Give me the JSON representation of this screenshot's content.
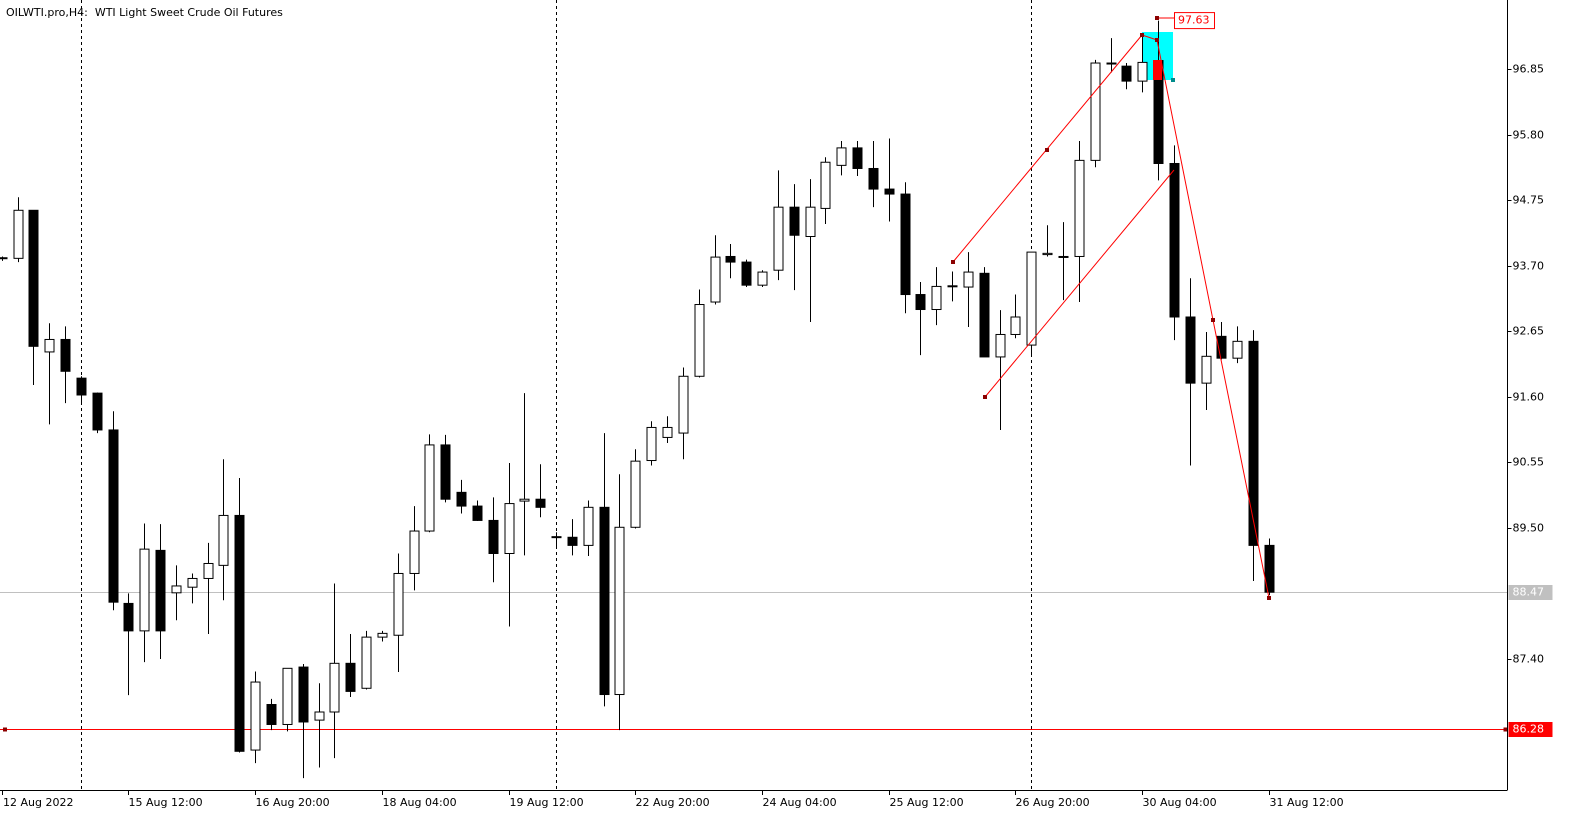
{
  "chart_data": {
    "type": "candlestick",
    "title": "OILWTI.pro,H4:  WTI Light Sweet Crude Oil Futures",
    "categories": [
      "12 Aug 2022",
      null,
      null,
      null,
      null,
      null,
      null,
      null,
      "15 Aug 12:00",
      null,
      null,
      null,
      null,
      null,
      null,
      null,
      "16 Aug 20:00",
      null,
      null,
      null,
      null,
      null,
      null,
      null,
      "18 Aug 04:00",
      null,
      null,
      null,
      null,
      null,
      null,
      null,
      "19 Aug 12:00",
      null,
      null,
      null,
      null,
      null,
      null,
      null,
      "22 Aug 20:00",
      null,
      null,
      null,
      null,
      null,
      null,
      null,
      "24 Aug 04:00",
      null,
      null,
      null,
      null,
      null,
      null,
      null,
      "25 Aug 12:00",
      null,
      null,
      null,
      null,
      null,
      null,
      null,
      "26 Aug 20:00",
      null,
      null,
      null,
      null,
      null,
      null,
      null,
      "30 Aug 04:00",
      null,
      null,
      null,
      null,
      null,
      null,
      null,
      "31 Aug 12:00"
    ],
    "open": [
      93.82,
      93.82,
      94.59,
      92.32,
      92.52,
      91.9,
      91.66,
      91.07,
      88.29,
      87.85,
      89.14,
      88.46,
      88.55,
      88.69,
      88.9,
      89.7,
      85.94,
      86.67,
      86.35,
      87.27,
      86.42,
      86.55,
      87.33,
      86.93,
      87.75,
      87.78,
      88.77,
      89.45,
      90.83,
      90.07,
      89.85,
      89.62,
      89.09,
      89.93,
      89.96,
      89.36,
      89.35,
      89.22,
      89.83,
      86.83,
      89.51,
      90.58,
      90.95,
      91.02,
      91.93,
      93.12,
      93.85,
      93.76,
      93.39,
      93.63,
      94.64,
      94.17,
      94.62,
      95.31,
      95.59,
      95.26,
      94.93,
      94.85,
      93.24,
      93.0,
      93.37,
      93.36,
      93.58,
      92.24,
      92.6,
      92.43,
      93.88,
      93.85,
      93.85,
      95.39,
      96.95,
      96.9,
      96.66,
      96.99,
      95.34,
      92.88,
      91.82,
      92.57,
      92.22,
      92.49,
      89.22
    ],
    "high": [
      93.85,
      94.8,
      94.59,
      92.78,
      92.73,
      91.93,
      91.67,
      91.37,
      88.45,
      89.57,
      89.56,
      88.9,
      88.77,
      89.26,
      90.6,
      90.3,
      87.2,
      86.76,
      87.25,
      87.32,
      87.01,
      88.61,
      87.8,
      87.85,
      87.85,
      89.09,
      89.85,
      91.0,
      90.99,
      90.27,
      89.94,
      89.99,
      90.54,
      91.66,
      90.52,
      89.43,
      89.64,
      89.94,
      91.02,
      90.36,
      90.76,
      91.21,
      91.29,
      92.07,
      93.32,
      94.19,
      94.05,
      93.8,
      93.63,
      95.23,
      95.01,
      95.09,
      95.44,
      95.7,
      95.7,
      95.7,
      95.74,
      95.04,
      93.44,
      93.68,
      93.61,
      93.92,
      93.68,
      92.99,
      93.24,
      93.92,
      94.35,
      94.4,
      95.7,
      97.0,
      97.35,
      96.95,
      97.4,
      97.63,
      95.63,
      93.5,
      92.64,
      92.8,
      92.73,
      92.67,
      89.33
    ],
    "low": [
      93.78,
      93.76,
      91.79,
      91.16,
      91.5,
      91.51,
      91.02,
      88.18,
      86.82,
      87.35,
      87.4,
      88.02,
      88.29,
      87.8,
      88.34,
      85.9,
      85.73,
      86.26,
      86.24,
      85.49,
      85.66,
      85.81,
      86.79,
      86.91,
      87.68,
      87.19,
      88.5,
      89.43,
      89.91,
      89.73,
      89.61,
      88.63,
      87.92,
      89.06,
      89.67,
      89.19,
      89.06,
      89.05,
      86.64,
      86.26,
      89.49,
      90.5,
      90.86,
      90.6,
      91.91,
      93.08,
      93.5,
      93.36,
      93.36,
      93.47,
      93.31,
      92.8,
      94.37,
      95.15,
      95.14,
      94.64,
      94.41,
      92.94,
      92.27,
      92.75,
      93.13,
      92.72,
      92.24,
      91.07,
      92.54,
      92.28,
      93.85,
      93.15,
      93.12,
      95.28,
      96.8,
      96.53,
      96.48,
      95.07,
      92.51,
      90.5,
      91.39,
      92.2,
      92.14,
      88.65,
      88.42
    ],
    "close": [
      93.83,
      94.59,
      92.41,
      92.52,
      92.01,
      91.63,
      91.07,
      88.31,
      87.85,
      89.16,
      87.85,
      88.57,
      88.69,
      88.93,
      89.7,
      85.92,
      87.03,
      86.35,
      87.25,
      86.39,
      86.55,
      87.33,
      86.88,
      87.75,
      87.81,
      88.77,
      89.45,
      90.83,
      89.96,
      89.85,
      89.62,
      89.09,
      89.89,
      89.96,
      89.83,
      89.35,
      89.22,
      89.83,
      86.83,
      89.51,
      90.57,
      91.11,
      91.11,
      91.93,
      93.08,
      93.84,
      93.76,
      93.39,
      93.6,
      94.64,
      94.19,
      94.64,
      95.36,
      95.59,
      95.26,
      94.93,
      94.85,
      93.24,
      93.0,
      93.37,
      93.38,
      93.6,
      92.24,
      92.6,
      92.88,
      93.92,
      93.9,
      93.84,
      95.39,
      96.95,
      96.94,
      96.66,
      96.96,
      95.34,
      92.88,
      91.82,
      92.25,
      92.22,
      92.49,
      89.22,
      88.47
    ],
    "up_color": "#ffffff",
    "down_color": "#000000",
    "ylim": [
      85.3,
      97.96
    ],
    "yticks": [
      96.85,
      {
        "value": 95.8,
        "label": "95.80"
      },
      {
        "value": 94.75,
        "label": "94.75"
      },
      {
        "value": 93.7,
        "label": "93.70"
      },
      92.65,
      {
        "value": 91.6,
        "label": "91.60"
      },
      90.55,
      {
        "value": 89.5,
        "label": "89.50"
      },
      {
        "value": 87.4,
        "label": "87.40"
      }
    ],
    "hlines": [
      {
        "value": 88.47,
        "color": "#c0c0c0"
      },
      {
        "value": 86.28,
        "color": "#ff0000"
      }
    ],
    "annotation": {
      "value": 97.63,
      "color": "#ff0000"
    }
  }
}
